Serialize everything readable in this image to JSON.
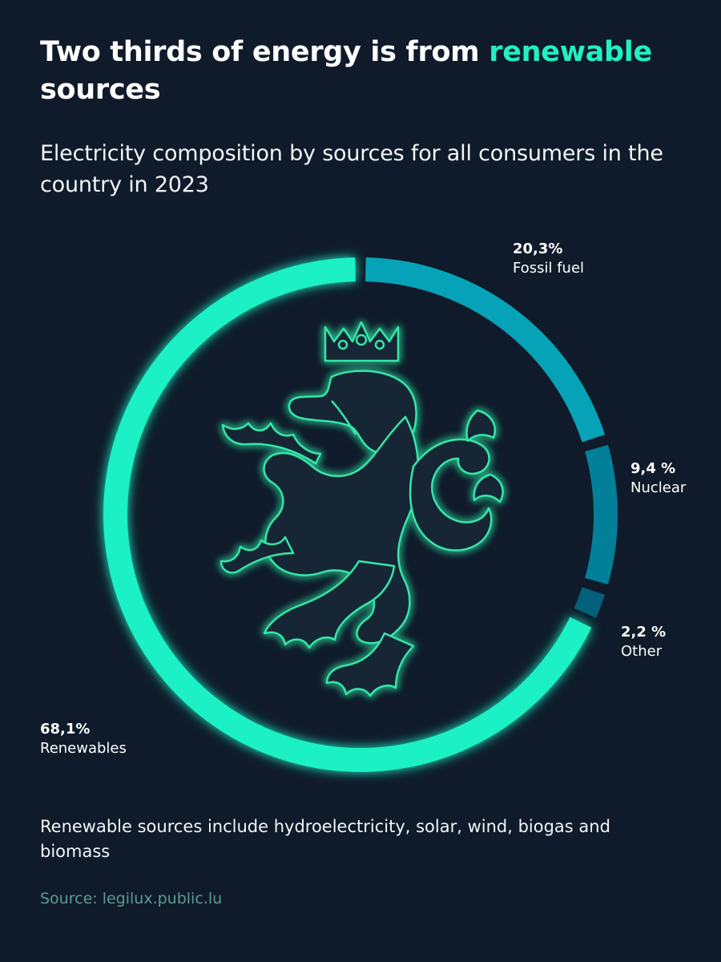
{
  "headline": {
    "prefix": "Two thirds of energy is from ",
    "highlight": "renewable",
    "suffix": " sources"
  },
  "subtitle": "Electricity composition by sources for all consumers in the country in 2023",
  "footnote": "Renewable sources include hydroelectricity, solar, wind, biogas and biomass",
  "source": "Source: legilux.public.lu",
  "colors": {
    "background": "#0f1b2a",
    "accent": "#21f0c4",
    "renewables": "#1df0c5",
    "fossil": "#06a3b8",
    "nuclear": "#027f99",
    "other": "#045f7a",
    "emblem_glow": "#35e6a8"
  },
  "emblem": {
    "icon": "crowned-lion-emblem-icon"
  },
  "chart_data": {
    "type": "pie",
    "variant": "donut",
    "unit": "%",
    "slices": [
      {
        "name": "Fossil fuel",
        "value": 20.3,
        "label": "20,3%",
        "color": "#06a3b8"
      },
      {
        "name": "Nuclear",
        "value": 9.4,
        "label": "9,4 %",
        "color": "#027f99"
      },
      {
        "name": "Other",
        "value": 2.2,
        "label": "2,2 %",
        "color": "#045f7a"
      },
      {
        "name": "Renewables",
        "value": 68.1,
        "label": "68,1%",
        "color": "#1df0c5"
      }
    ]
  }
}
